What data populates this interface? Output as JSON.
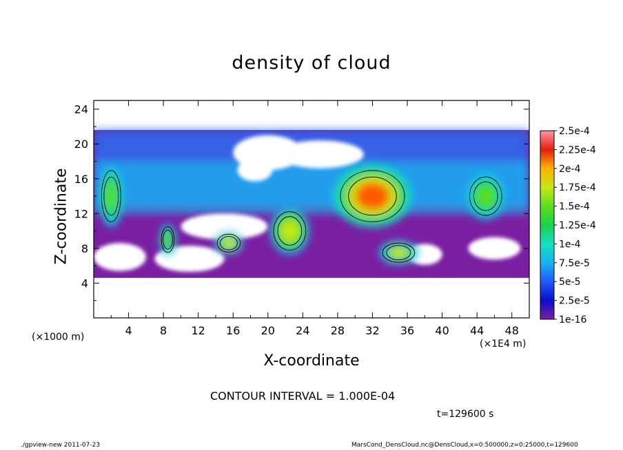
{
  "title": "density of cloud",
  "x_axis": {
    "label": "X-coordinate",
    "unit_left": "(×1000 m)",
    "unit_right": "(×1E4 m)"
  },
  "y_axis": {
    "label": "Z-coordinate"
  },
  "contour_interval": "CONTOUR INTERVAL = 1.000E-04",
  "time": "t=129600 s",
  "footer": {
    "left": "./gpview-new   2011-07-23",
    "right": "MarsCond_DensCloud.nc@DensCloud,x=0:500000,z=0:25000,t=129600"
  },
  "chart_data": {
    "type": "heatmap",
    "title": "density of cloud",
    "xlabel": "X-coordinate",
    "ylabel": "Z-coordinate",
    "xlim": [
      0,
      50
    ],
    "ylim": [
      0,
      25
    ],
    "x_ticks": [
      "4",
      "8",
      "12",
      "16",
      "20",
      "24",
      "28",
      "32",
      "36",
      "40",
      "44",
      "48"
    ],
    "x_tick_values": [
      4,
      8,
      12,
      16,
      20,
      24,
      28,
      32,
      36,
      40,
      44,
      48
    ],
    "y_ticks": [
      "4",
      "8",
      "12",
      "16",
      "20",
      "24"
    ],
    "y_tick_values": [
      4,
      8,
      12,
      16,
      20,
      24
    ],
    "cloud_z_range": [
      4.6,
      21.6
    ],
    "colorbar": {
      "labels": [
        "1e-16",
        "2.5e-5",
        "5e-5",
        "7.5e-5",
        "1e-4",
        "1.25e-4",
        "1.5e-4",
        "1.75e-4",
        "2e-4",
        "2.25e-4",
        "2.5e-4"
      ],
      "colors": [
        "#7a1fa2",
        "#0a10c8",
        "#1e5aff",
        "#17b4f0",
        "#16e0c0",
        "#18d24a",
        "#5ae01e",
        "#c8e614",
        "#ffb400",
        "#ff5a00",
        "#e61e14",
        "#ff96a0"
      ]
    },
    "blobs": [
      {
        "x": 32,
        "z": 14,
        "rx": 5,
        "rz": 4,
        "value": 0.0002
      },
      {
        "x": 22.5,
        "z": 10,
        "rx": 2.5,
        "rz": 3,
        "value": 0.00016
      },
      {
        "x": 35,
        "z": 7.5,
        "rx": 2.5,
        "rz": 1.5,
        "value": 0.00014
      },
      {
        "x": 15.5,
        "z": 8.6,
        "rx": 1.8,
        "rz": 1.4,
        "value": 0.00015
      },
      {
        "x": 45,
        "z": 14,
        "rx": 2.5,
        "rz": 3,
        "value": 0.00013
      },
      {
        "x": 2,
        "z": 14,
        "rx": 1.5,
        "rz": 4,
        "value": 0.00012
      },
      {
        "x": 8.5,
        "z": 9,
        "rx": 1,
        "rz": 2,
        "value": 0.00012
      }
    ]
  }
}
